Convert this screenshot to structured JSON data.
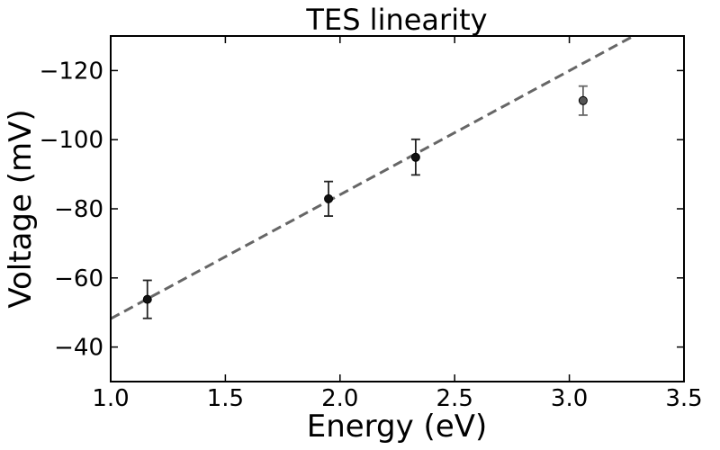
{
  "chart_data": {
    "type": "scatter",
    "title": "TES linearity",
    "xlabel": "Energy (eV)",
    "ylabel": "Voltage (mV)",
    "xlim": [
      1.0,
      3.5
    ],
    "ylim": [
      -30,
      -130
    ],
    "y_inverted": true,
    "grid": false,
    "x_ticks": [
      1.0,
      1.5,
      2.0,
      2.5,
      3.0,
      3.5
    ],
    "x_tick_labels": [
      "1.0",
      "1.5",
      "2.0",
      "2.5",
      "3.0",
      "3.5"
    ],
    "y_ticks": [
      -40,
      -60,
      -80,
      -100,
      -120
    ],
    "y_tick_labels": [
      "−40",
      "−60",
      "−80",
      "−100",
      "−120"
    ],
    "points": [
      {
        "x": 1.16,
        "y": -53.8,
        "err_low": -48.3,
        "err_high": -59.3,
        "color": "#111111"
      },
      {
        "x": 1.95,
        "y": -82.9,
        "err_low": -77.9,
        "err_high": -87.9,
        "color": "#111111"
      },
      {
        "x": 2.33,
        "y": -94.9,
        "err_low": -89.8,
        "err_high": -100.1,
        "color": "#111111"
      },
      {
        "x": 3.06,
        "y": -111.3,
        "err_low": -107.1,
        "err_high": -115.5,
        "color": "#555555"
      }
    ],
    "fit_line": {
      "style": "dashed",
      "color": "#666666",
      "x": [
        1.0,
        3.28
      ],
      "y": [
        -48.2,
        -130.0
      ]
    }
  }
}
